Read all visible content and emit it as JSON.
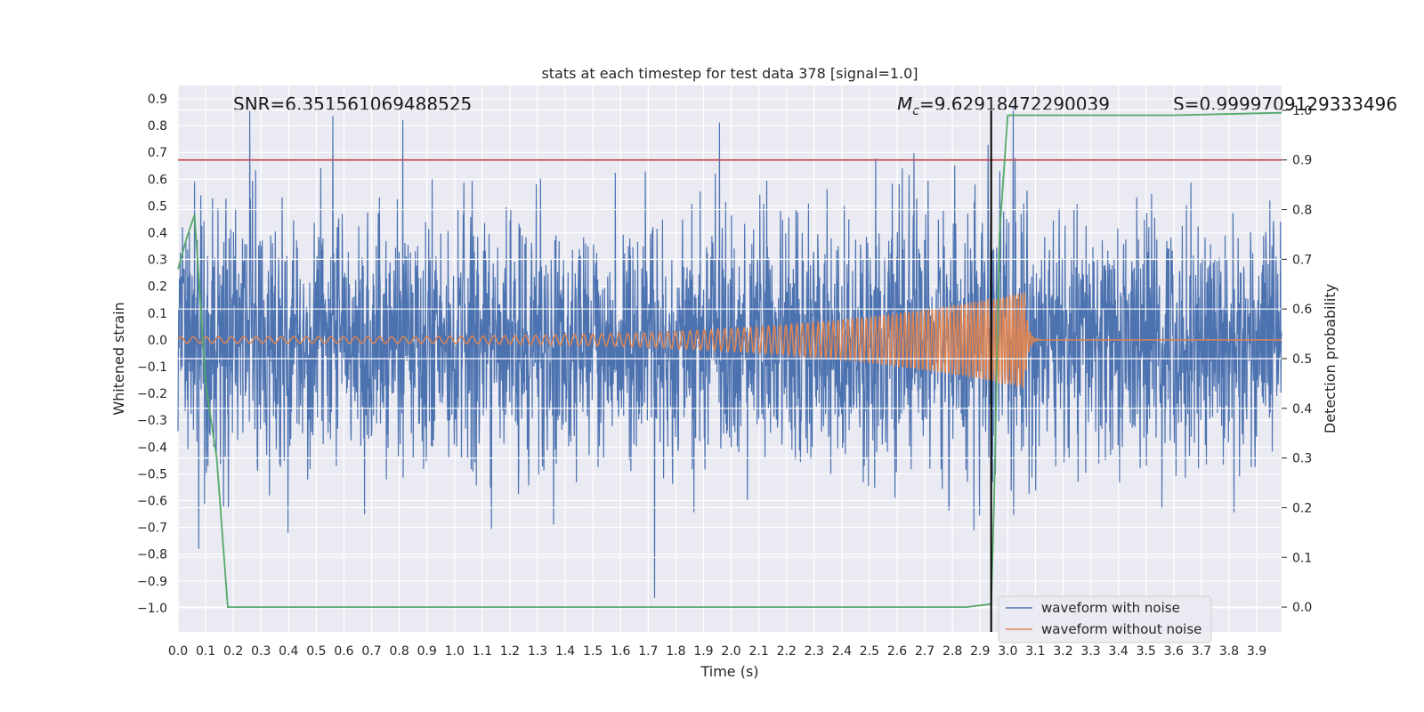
{
  "chart_data": {
    "type": "line",
    "title": "stats at each timestep for test data 378 [signal=1.0]",
    "xlabel": "Time (s)",
    "ylabel": "Whitened strain",
    "y2label": "Detection probability",
    "xlim": [
      0.0,
      3.99
    ],
    "ylim": [
      -1.09,
      0.95
    ],
    "y2lim": [
      -0.05,
      1.05
    ],
    "xticks": [
      0.0,
      0.1,
      0.2,
      0.3,
      0.4,
      0.5,
      0.6,
      0.7,
      0.8,
      0.9,
      1.0,
      1.1,
      1.2,
      1.3,
      1.4,
      1.5,
      1.6,
      1.7,
      1.8,
      1.9,
      2.0,
      2.1,
      2.2,
      2.3,
      2.4,
      2.5,
      2.6,
      2.7,
      2.8,
      2.9,
      3.0,
      3.1,
      3.2,
      3.3,
      3.4,
      3.5,
      3.6,
      3.7,
      3.8,
      3.9
    ],
    "xtick_labels": [
      "0.0",
      "0.1",
      "0.2",
      "0.3",
      "0.4",
      "0.5",
      "0.6",
      "0.7",
      "0.8",
      "0.9",
      "1.0",
      "1.1",
      "1.2",
      "1.3",
      "1.4",
      "1.5",
      "1.6",
      "1.7",
      "1.8",
      "1.9",
      "2.0",
      "2.1",
      "2.2",
      "2.3",
      "2.4",
      "2.5",
      "2.6",
      "2.7",
      "2.8",
      "2.9",
      "3.0",
      "3.1",
      "3.2",
      "3.3",
      "3.4",
      "3.5",
      "3.6",
      "3.7",
      "3.8",
      "3.9"
    ],
    "yticks": [
      0.9,
      0.8,
      0.7,
      0.6,
      0.5,
      0.4,
      0.3,
      0.2,
      0.1,
      0.0,
      -0.1,
      -0.2,
      -0.3,
      -0.4,
      -0.5,
      -0.6,
      -0.7,
      -0.8,
      -0.9,
      -1.0
    ],
    "ytick_labels": [
      "0.9",
      "0.8",
      "0.7",
      "0.6",
      "0.5",
      "0.4",
      "0.3",
      "0.2",
      "0.1",
      "0.0",
      "−0.1",
      "−0.2",
      "−0.3",
      "−0.4",
      "−0.5",
      "−0.6",
      "−0.7",
      "−0.8",
      "−0.9",
      "−1.0"
    ],
    "y2ticks": [
      1.0,
      0.9,
      0.8,
      0.7,
      0.6,
      0.5,
      0.4,
      0.3,
      0.2,
      0.1,
      0.0
    ],
    "y2tick_labels": [
      "1.0",
      "0.9",
      "0.8",
      "0.7",
      "0.6",
      "0.5",
      "0.4",
      "0.3",
      "0.2",
      "0.1",
      "0.0"
    ],
    "threshold_prob": 0.9,
    "merger_time": 2.94,
    "annotations": {
      "snr": "SNR=6.351561069488525",
      "mc_symbol": "M",
      "mc_sub": "c",
      "mc_value": "=9.62918472290039",
      "s": "S=0.9999709129333496"
    },
    "series": [
      {
        "name": "waveform with noise",
        "color": "#4c72b0",
        "description": "whitened noisy strain, approx. amplitude 0.3 std, extremes up to ~0.87 and -1.0",
        "noise_sigma": 0.22
      },
      {
        "name": "waveform without noise",
        "color": "#dd8452",
        "description": "chirp signal, amplitude rising from ~0.01 to ~0.18 peak at t~3.06 s, ringdown then flat",
        "chirp": {
          "t_start": 0.0,
          "t_peak": 3.06,
          "amp_start": 0.012,
          "amp_peak": 0.18,
          "f_start": 22,
          "f_end": 95
        }
      },
      {
        "name": "detection probability",
        "color": "#55a868",
        "axis": "right",
        "x": [
          0.0,
          0.03,
          0.06,
          0.1,
          0.14,
          0.18,
          0.25,
          0.5,
          1.0,
          1.5,
          2.0,
          2.5,
          2.85,
          2.94,
          2.95,
          2.97,
          3.0,
          3.3,
          3.6,
          3.99
        ],
        "y": [
          0.68,
          0.74,
          0.79,
          0.45,
          0.3,
          0.0,
          0.0,
          0.0,
          0.0,
          0.0,
          0.0,
          0.0,
          0.0,
          0.006,
          0.2,
          0.75,
          0.99,
          0.99,
          0.99,
          0.995
        ]
      }
    ],
    "threshold_color": "#c44e52",
    "legend": {
      "position": "lower-right",
      "entries": [
        "waveform with noise",
        "waveform without noise"
      ]
    }
  }
}
